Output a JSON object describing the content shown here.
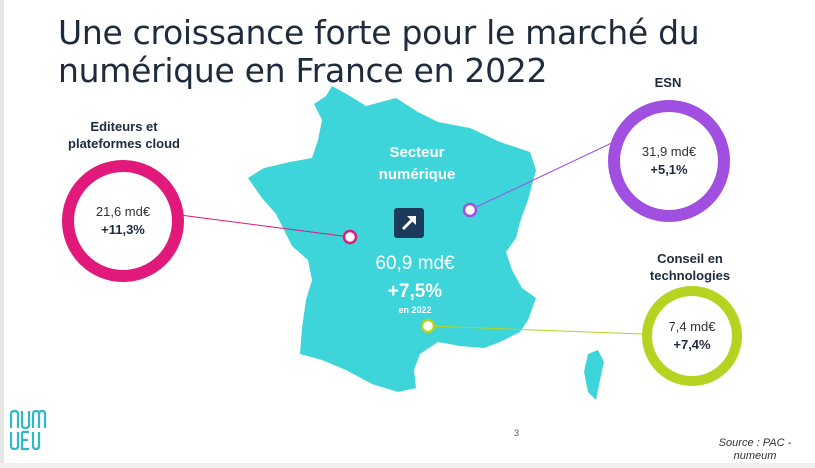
{
  "title": "Une croissance forte pour le marché du numérique en France en 2022",
  "center": {
    "label": "Secteur numérique",
    "value": "60,9 md€",
    "growth": "+7,5%",
    "year": "en 2022",
    "color": "#3dd5d9"
  },
  "segments": [
    {
      "label": "Editeurs et plateformes cloud",
      "value": "21,6 md€",
      "growth": "+11,3%",
      "color": "#e0197a"
    },
    {
      "label": "ESN",
      "value": "31,9 md€",
      "growth": "+5,1%",
      "color": "#a04fe0"
    },
    {
      "label": "Conseil en technologies",
      "value": "7,4 md€",
      "growth": "+7,4%",
      "color": "#b5d320"
    }
  ],
  "page_number": "3",
  "source": "Source : PAC - numeum",
  "logo": {
    "text": "numeum",
    "color": "#2fb8c9"
  }
}
